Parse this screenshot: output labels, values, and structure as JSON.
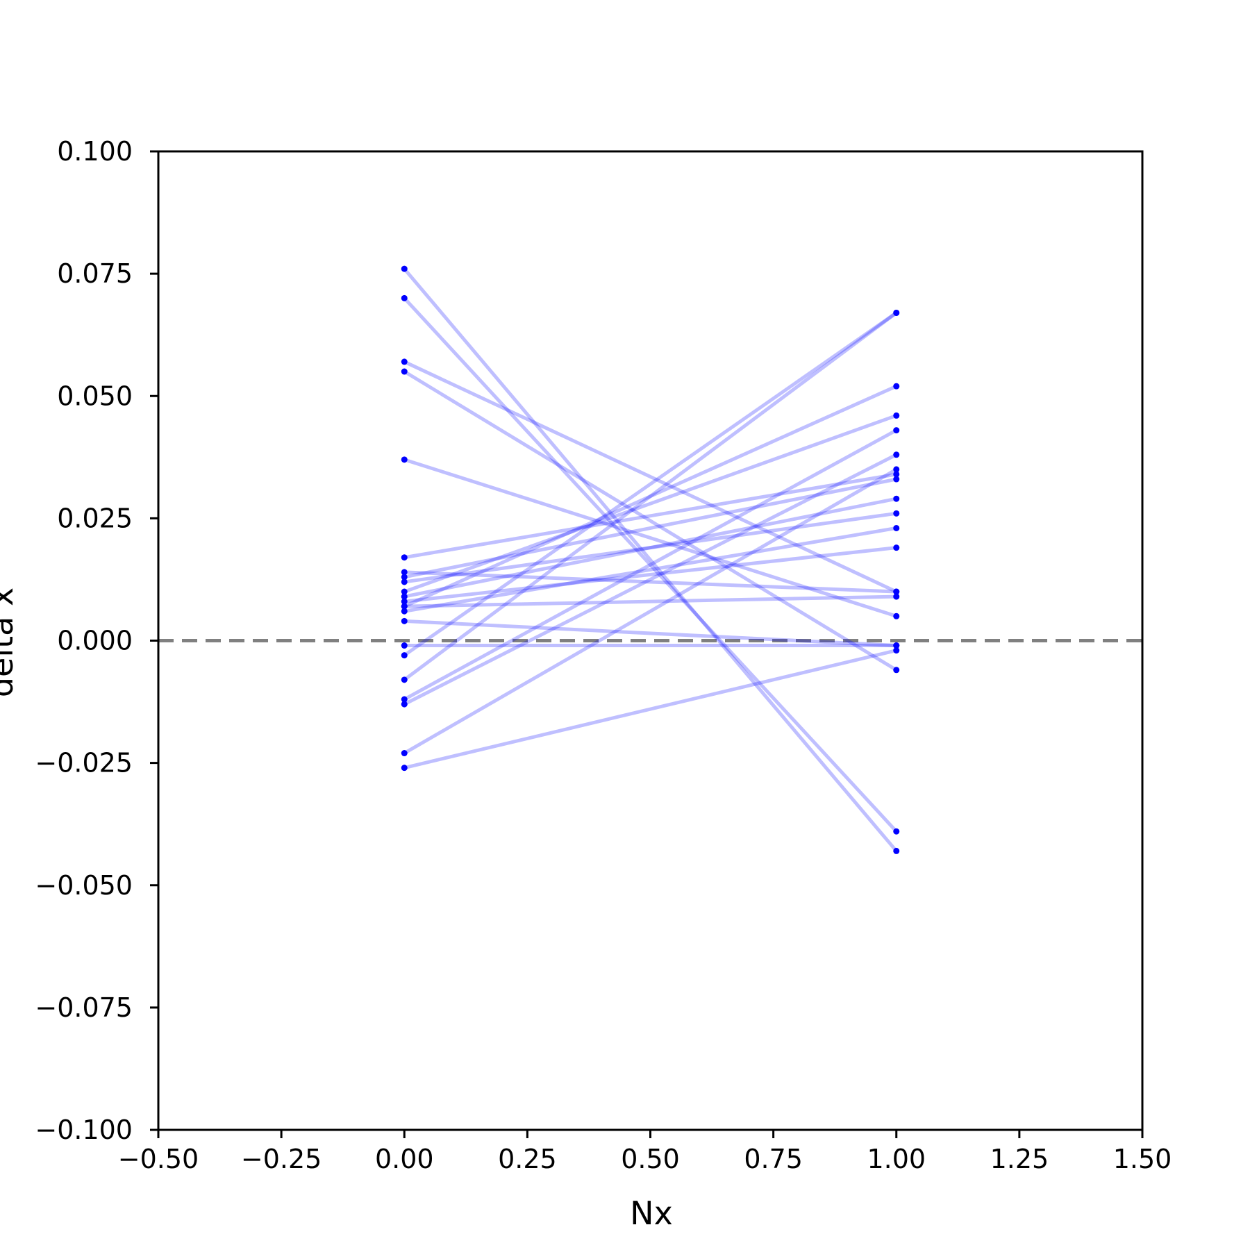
{
  "chart_data": {
    "type": "line",
    "title": "",
    "xlabel": "Nx",
    "ylabel": "delta x",
    "xlim": [
      -0.5,
      1.5
    ],
    "ylim": [
      -0.1,
      0.1
    ],
    "xticks": [
      "−0.50",
      "−0.25",
      "0.00",
      "0.25",
      "0.50",
      "0.75",
      "1.00",
      "1.25",
      "1.50"
    ],
    "yticks": [
      "−0.100",
      "−0.075",
      "−0.050",
      "−0.025",
      "0.000",
      "0.025",
      "0.050",
      "0.075",
      "0.100"
    ],
    "reference_line": {
      "y": 0.0,
      "style": "dashed",
      "color": "#808080"
    },
    "line_color": "#0000ff",
    "line_opacity": 0.25,
    "marker_color": "#0000ff",
    "grid": false,
    "segments": [
      {
        "x": [
          0,
          1
        ],
        "y": [
          0.076,
          -0.043
        ]
      },
      {
        "x": [
          0,
          1
        ],
        "y": [
          0.07,
          -0.039
        ]
      },
      {
        "x": [
          0,
          1
        ],
        "y": [
          0.057,
          0.01
        ]
      },
      {
        "x": [
          0,
          1
        ],
        "y": [
          0.055,
          -0.006
        ]
      },
      {
        "x": [
          0,
          1
        ],
        "y": [
          0.037,
          0.005
        ]
      },
      {
        "x": [
          0,
          1
        ],
        "y": [
          0.017,
          0.034
        ]
      },
      {
        "x": [
          0,
          1
        ],
        "y": [
          0.014,
          0.01
        ]
      },
      {
        "x": [
          0,
          1
        ],
        "y": [
          0.013,
          0.033
        ]
      },
      {
        "x": [
          0,
          1
        ],
        "y": [
          0.012,
          0.026
        ]
      },
      {
        "x": [
          0,
          1
        ],
        "y": [
          0.01,
          0.046
        ]
      },
      {
        "x": [
          0,
          1
        ],
        "y": [
          0.009,
          0.029
        ]
      },
      {
        "x": [
          0,
          1
        ],
        "y": [
          0.008,
          0.019
        ]
      },
      {
        "x": [
          0,
          1
        ],
        "y": [
          0.007,
          0.009
        ]
      },
      {
        "x": [
          0,
          1
        ],
        "y": [
          0.007,
          0.052
        ]
      },
      {
        "x": [
          0,
          1
        ],
        "y": [
          0.006,
          0.023
        ]
      },
      {
        "x": [
          0,
          1
        ],
        "y": [
          0.004,
          -0.001
        ]
      },
      {
        "x": [
          0,
          1
        ],
        "y": [
          -0.001,
          -0.001
        ]
      },
      {
        "x": [
          0,
          1
        ],
        "y": [
          -0.003,
          0.067
        ]
      },
      {
        "x": [
          0,
          1
        ],
        "y": [
          -0.008,
          0.067
        ]
      },
      {
        "x": [
          0,
          1
        ],
        "y": [
          -0.012,
          0.043
        ]
      },
      {
        "x": [
          0,
          1
        ],
        "y": [
          -0.013,
          0.038
        ]
      },
      {
        "x": [
          0,
          1
        ],
        "y": [
          -0.023,
          0.035
        ]
      },
      {
        "x": [
          0,
          1
        ],
        "y": [
          -0.026,
          -0.002
        ]
      }
    ]
  }
}
